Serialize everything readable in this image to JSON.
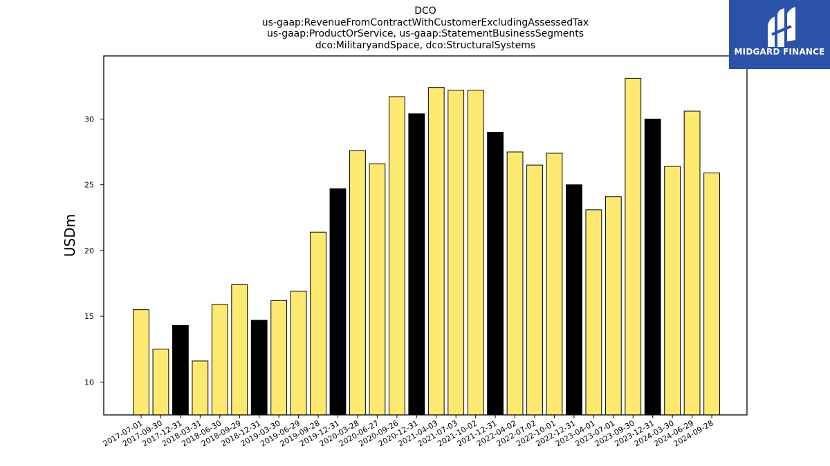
{
  "chart_data": {
    "type": "bar",
    "title_lines": [
      "DCO",
      "us-gaap:RevenueFromContractWithCustomerExcludingAssessedTax",
      "us-gaap:ProductOrService, us-gaap:StatementBusinessSegments",
      "dco:MilitaryandSpace, dco:StructuralSystems"
    ],
    "xlabel": "",
    "ylabel": "USDm",
    "ylim": [
      7.5,
      34.8
    ],
    "yticks": [
      10,
      15,
      20,
      25,
      30
    ],
    "grid": false,
    "categories": [
      "2017-07-01",
      "2017-09-30",
      "2017-12-31",
      "2018-03-31",
      "2018-06-30",
      "2018-09-29",
      "2018-12-31",
      "2019-03-30",
      "2019-06-29",
      "2019-09-28",
      "2019-12-31",
      "2020-03-28",
      "2020-06-27",
      "2020-09-26",
      "2020-12-31",
      "2021-04-03",
      "2021-07-03",
      "2021-10-02",
      "2021-12-31",
      "2022-04-02",
      "2022-07-02",
      "2022-10-01",
      "2022-12-31",
      "2023-04-01",
      "2023-07-01",
      "2023-09-30",
      "2023-12-31",
      "2024-03-30",
      "2024-06-29",
      "2024-09-28"
    ],
    "values": [
      15.5,
      12.5,
      14.3,
      11.6,
      15.9,
      17.4,
      14.7,
      16.2,
      16.9,
      21.4,
      24.7,
      27.6,
      26.6,
      31.7,
      30.4,
      32.4,
      32.2,
      32.2,
      29.0,
      27.5,
      26.5,
      27.4,
      25.0,
      23.1,
      24.1,
      33.1,
      30.0,
      26.4,
      30.6,
      25.9
    ],
    "highlight": [
      false,
      false,
      true,
      false,
      false,
      false,
      true,
      false,
      false,
      false,
      true,
      false,
      false,
      false,
      true,
      false,
      false,
      false,
      true,
      false,
      false,
      false,
      true,
      false,
      false,
      false,
      true,
      false,
      false,
      false
    ],
    "colors": {
      "bar": "#fde96f",
      "highlight_bar": "#000000",
      "edge": "#000000"
    }
  },
  "logo": {
    "text": "MIDGARD FINANCE",
    "bg": "#2a52a6"
  }
}
